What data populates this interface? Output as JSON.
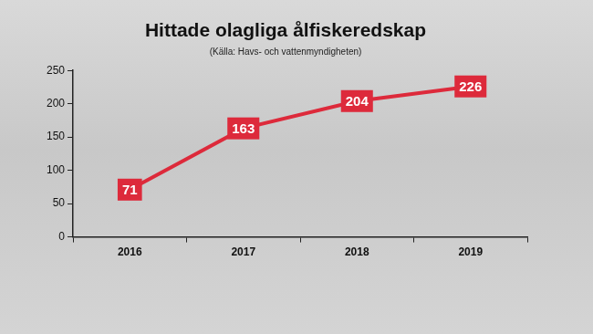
{
  "chart_data": {
    "type": "line",
    "title": "Hittade olagliga ålfiskeredskap",
    "subtitle": "(Källa: Havs- och vattenmyndigheten)",
    "categories": [
      "2016",
      "2017",
      "2018",
      "2019"
    ],
    "values": [
      71,
      163,
      204,
      226
    ],
    "color": "#dd2a3b",
    "ylim": [
      0,
      250
    ],
    "yticks": [
      0,
      50,
      100,
      150,
      200,
      250
    ],
    "grid": false,
    "data_labels": true
  }
}
